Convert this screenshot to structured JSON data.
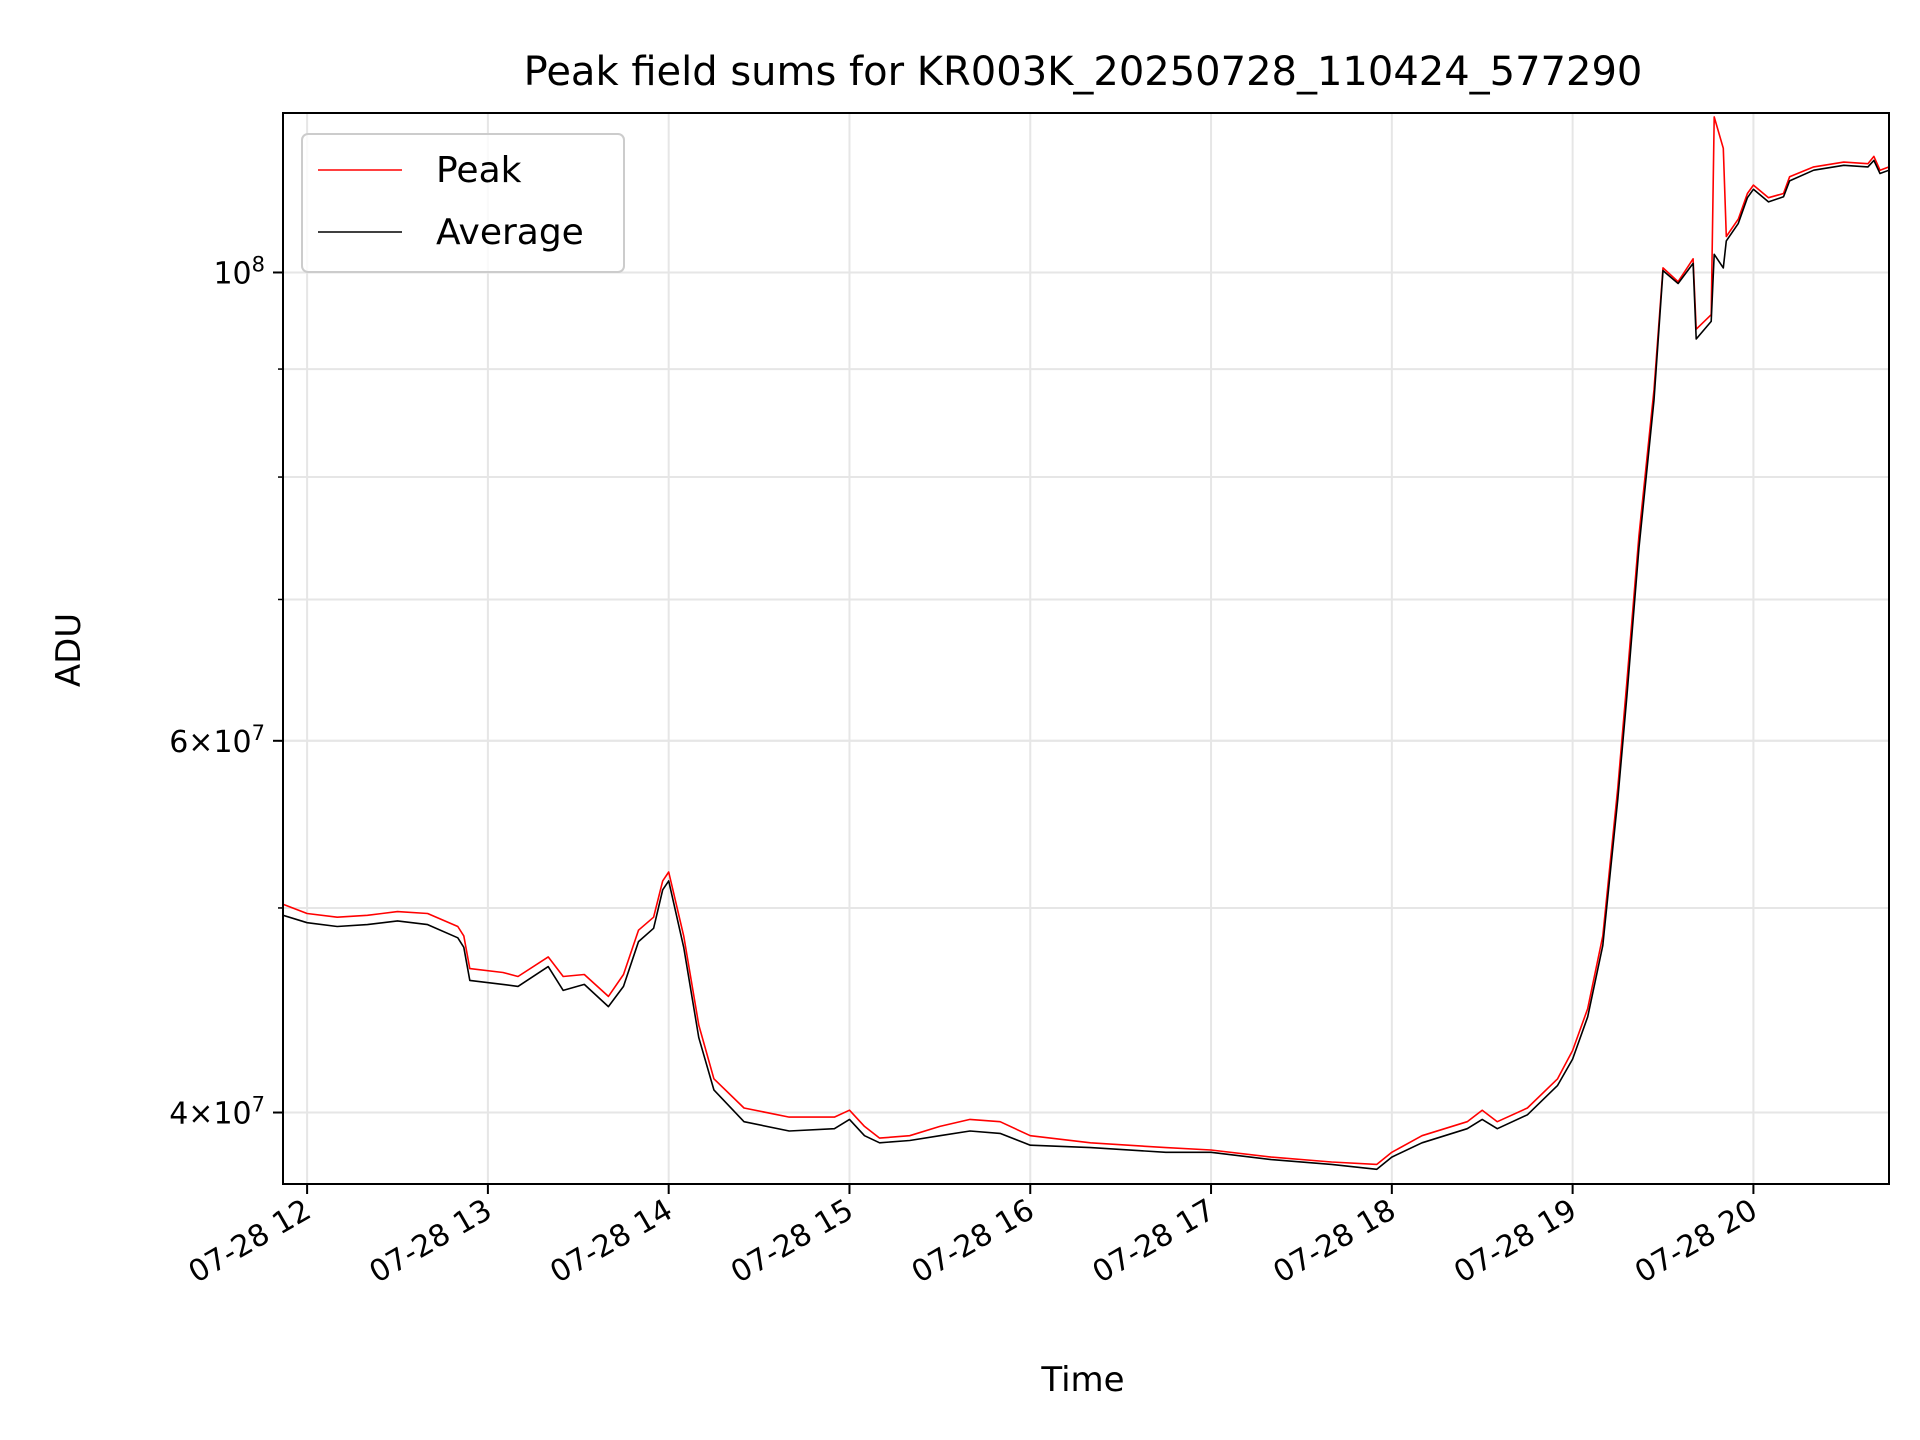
{
  "chart_data": {
    "type": "line",
    "title": "Peak field sums for KR003K_20250728_110424_577290",
    "xlabel": "Time",
    "ylabel": "ADU",
    "y_scale": "log",
    "xlim": [
      "2025-07-28T11:52",
      "2025-07-28T20:45"
    ],
    "ylim": [
      37000000,
      119000000
    ],
    "grid": true,
    "legend_position": "upper left",
    "x_ticks": [
      {
        "t": "2025-07-28T12:00",
        "label": "07-28 12"
      },
      {
        "t": "2025-07-28T13:00",
        "label": "07-28 13"
      },
      {
        "t": "2025-07-28T14:00",
        "label": "07-28 14"
      },
      {
        "t": "2025-07-28T15:00",
        "label": "07-28 15"
      },
      {
        "t": "2025-07-28T16:00",
        "label": "07-28 16"
      },
      {
        "t": "2025-07-28T17:00",
        "label": "07-28 17"
      },
      {
        "t": "2025-07-28T18:00",
        "label": "07-28 18"
      },
      {
        "t": "2025-07-28T19:00",
        "label": "07-28 19"
      },
      {
        "t": "2025-07-28T20:00",
        "label": "07-28 20"
      }
    ],
    "y_major_ticks": [
      {
        "v": 40000000,
        "base": "4",
        "exp": "7"
      },
      {
        "v": 60000000,
        "base": "6",
        "exp": "7"
      },
      {
        "v": 100000000,
        "base": "",
        "exp": "8"
      }
    ],
    "y_minor_ticks": [
      40000000,
      50000000,
      60000000,
      70000000,
      80000000,
      90000000
    ],
    "series": [
      {
        "name": "Peak",
        "color": "#ff0000",
        "points": [
          [
            "2025-07-28T11:52",
            50200000
          ],
          [
            "2025-07-28T12:00",
            49700000
          ],
          [
            "2025-07-28T12:10",
            49500000
          ],
          [
            "2025-07-28T12:20",
            49600000
          ],
          [
            "2025-07-28T12:30",
            49800000
          ],
          [
            "2025-07-28T12:40",
            49700000
          ],
          [
            "2025-07-28T12:50",
            49000000
          ],
          [
            "2025-07-28T12:52",
            48500000
          ],
          [
            "2025-07-28T12:54",
            46800000
          ],
          [
            "2025-07-28T13:05",
            46600000
          ],
          [
            "2025-07-28T13:10",
            46400000
          ],
          [
            "2025-07-28T13:20",
            47400000
          ],
          [
            "2025-07-28T13:25",
            46400000
          ],
          [
            "2025-07-28T13:32",
            46500000
          ],
          [
            "2025-07-28T13:40",
            45400000
          ],
          [
            "2025-07-28T13:45",
            46500000
          ],
          [
            "2025-07-28T13:50",
            48800000
          ],
          [
            "2025-07-28T13:55",
            49500000
          ],
          [
            "2025-07-28T13:58",
            51500000
          ],
          [
            "2025-07-28T14:00",
            52000000
          ],
          [
            "2025-07-28T14:05",
            48500000
          ],
          [
            "2025-07-28T14:10",
            44000000
          ],
          [
            "2025-07-28T14:15",
            41500000
          ],
          [
            "2025-07-28T14:25",
            40200000
          ],
          [
            "2025-07-28T14:40",
            39800000
          ],
          [
            "2025-07-28T14:55",
            39800000
          ],
          [
            "2025-07-28T15:00",
            40100000
          ],
          [
            "2025-07-28T15:05",
            39400000
          ],
          [
            "2025-07-28T15:10",
            38900000
          ],
          [
            "2025-07-28T15:20",
            39000000
          ],
          [
            "2025-07-28T15:30",
            39400000
          ],
          [
            "2025-07-28T15:40",
            39700000
          ],
          [
            "2025-07-28T15:50",
            39600000
          ],
          [
            "2025-07-28T16:00",
            39000000
          ],
          [
            "2025-07-28T16:20",
            38700000
          ],
          [
            "2025-07-28T16:45",
            38500000
          ],
          [
            "2025-07-28T17:00",
            38400000
          ],
          [
            "2025-07-28T17:20",
            38100000
          ],
          [
            "2025-07-28T17:40",
            37900000
          ],
          [
            "2025-07-28T17:55",
            37800000
          ],
          [
            "2025-07-28T18:00",
            38300000
          ],
          [
            "2025-07-28T18:10",
            39000000
          ],
          [
            "2025-07-28T18:25",
            39600000
          ],
          [
            "2025-07-28T18:30",
            40100000
          ],
          [
            "2025-07-28T18:35",
            39600000
          ],
          [
            "2025-07-28T18:45",
            40200000
          ],
          [
            "2025-07-28T18:55",
            41500000
          ],
          [
            "2025-07-28T19:00",
            42800000
          ],
          [
            "2025-07-28T19:05",
            44800000
          ],
          [
            "2025-07-28T19:10",
            48500000
          ],
          [
            "2025-07-28T19:15",
            57000000
          ],
          [
            "2025-07-28T19:18",
            64000000
          ],
          [
            "2025-07-28T19:22",
            75000000
          ],
          [
            "2025-07-28T19:27",
            88000000
          ],
          [
            "2025-07-28T19:30",
            100500000
          ],
          [
            "2025-07-28T19:35",
            99000000
          ],
          [
            "2025-07-28T19:40",
            101500000
          ],
          [
            "2025-07-28T19:41",
            94000000
          ],
          [
            "2025-07-28T19:46",
            95500000
          ],
          [
            "2025-07-28T19:47",
            118500000
          ],
          [
            "2025-07-28T19:50",
            114500000
          ],
          [
            "2025-07-28T19:51",
            104000000
          ],
          [
            "2025-07-28T19:55",
            106000000
          ],
          [
            "2025-07-28T19:58",
            109000000
          ],
          [
            "2025-07-28T20:00",
            110000000
          ],
          [
            "2025-07-28T20:05",
            108500000
          ],
          [
            "2025-07-28T20:10",
            109000000
          ],
          [
            "2025-07-28T20:12",
            111000000
          ],
          [
            "2025-07-28T20:20",
            112200000
          ],
          [
            "2025-07-28T20:30",
            112800000
          ],
          [
            "2025-07-28T20:38",
            112600000
          ],
          [
            "2025-07-28T20:40",
            113500000
          ],
          [
            "2025-07-28T20:42",
            111800000
          ],
          [
            "2025-07-28T20:45",
            112200000
          ]
        ]
      },
      {
        "name": "Average",
        "color": "#000000",
        "points": [
          [
            "2025-07-28T11:52",
            49600000
          ],
          [
            "2025-07-28T12:00",
            49200000
          ],
          [
            "2025-07-28T12:10",
            49000000
          ],
          [
            "2025-07-28T12:20",
            49100000
          ],
          [
            "2025-07-28T12:30",
            49300000
          ],
          [
            "2025-07-28T12:40",
            49100000
          ],
          [
            "2025-07-28T12:50",
            48400000
          ],
          [
            "2025-07-28T12:52",
            47900000
          ],
          [
            "2025-07-28T12:54",
            46200000
          ],
          [
            "2025-07-28T13:05",
            46000000
          ],
          [
            "2025-07-28T13:10",
            45900000
          ],
          [
            "2025-07-28T13:20",
            46900000
          ],
          [
            "2025-07-28T13:25",
            45700000
          ],
          [
            "2025-07-28T13:32",
            46000000
          ],
          [
            "2025-07-28T13:40",
            44900000
          ],
          [
            "2025-07-28T13:45",
            45900000
          ],
          [
            "2025-07-28T13:50",
            48200000
          ],
          [
            "2025-07-28T13:55",
            48900000
          ],
          [
            "2025-07-28T13:58",
            51000000
          ],
          [
            "2025-07-28T14:00",
            51500000
          ],
          [
            "2025-07-28T14:05",
            47900000
          ],
          [
            "2025-07-28T14:10",
            43400000
          ],
          [
            "2025-07-28T14:15",
            41000000
          ],
          [
            "2025-07-28T14:25",
            39600000
          ],
          [
            "2025-07-28T14:40",
            39200000
          ],
          [
            "2025-07-28T14:55",
            39300000
          ],
          [
            "2025-07-28T15:00",
            39700000
          ],
          [
            "2025-07-28T15:05",
            39000000
          ],
          [
            "2025-07-28T15:10",
            38700000
          ],
          [
            "2025-07-28T15:20",
            38800000
          ],
          [
            "2025-07-28T15:30",
            39000000
          ],
          [
            "2025-07-28T15:40",
            39200000
          ],
          [
            "2025-07-28T15:50",
            39100000
          ],
          [
            "2025-07-28T16:00",
            38600000
          ],
          [
            "2025-07-28T16:20",
            38500000
          ],
          [
            "2025-07-28T16:45",
            38300000
          ],
          [
            "2025-07-28T17:00",
            38300000
          ],
          [
            "2025-07-28T17:20",
            38000000
          ],
          [
            "2025-07-28T17:40",
            37800000
          ],
          [
            "2025-07-28T17:55",
            37600000
          ],
          [
            "2025-07-28T18:00",
            38100000
          ],
          [
            "2025-07-28T18:10",
            38700000
          ],
          [
            "2025-07-28T18:25",
            39300000
          ],
          [
            "2025-07-28T18:30",
            39700000
          ],
          [
            "2025-07-28T18:35",
            39300000
          ],
          [
            "2025-07-28T18:45",
            39900000
          ],
          [
            "2025-07-28T18:55",
            41200000
          ],
          [
            "2025-07-28T19:00",
            42400000
          ],
          [
            "2025-07-28T19:05",
            44400000
          ],
          [
            "2025-07-28T19:10",
            48000000
          ],
          [
            "2025-07-28T19:15",
            56300000
          ],
          [
            "2025-07-28T19:18",
            63000000
          ],
          [
            "2025-07-28T19:22",
            74000000
          ],
          [
            "2025-07-28T19:27",
            87000000
          ],
          [
            "2025-07-28T19:30",
            100200000
          ],
          [
            "2025-07-28T19:35",
            98800000
          ],
          [
            "2025-07-28T19:40",
            101000000
          ],
          [
            "2025-07-28T19:41",
            93000000
          ],
          [
            "2025-07-28T19:46",
            94800000
          ],
          [
            "2025-07-28T19:47",
            102000000
          ],
          [
            "2025-07-28T19:50",
            100500000
          ],
          [
            "2025-07-28T19:51",
            103500000
          ],
          [
            "2025-07-28T19:55",
            105500000
          ],
          [
            "2025-07-28T19:58",
            108500000
          ],
          [
            "2025-07-28T20:00",
            109500000
          ],
          [
            "2025-07-28T20:05",
            108000000
          ],
          [
            "2025-07-28T20:10",
            108600000
          ],
          [
            "2025-07-28T20:12",
            110500000
          ],
          [
            "2025-07-28T20:20",
            111800000
          ],
          [
            "2025-07-28T20:30",
            112400000
          ],
          [
            "2025-07-28T20:38",
            112200000
          ],
          [
            "2025-07-28T20:40",
            113000000
          ],
          [
            "2025-07-28T20:42",
            111400000
          ],
          [
            "2025-07-28T20:45",
            111800000
          ]
        ]
      }
    ]
  }
}
